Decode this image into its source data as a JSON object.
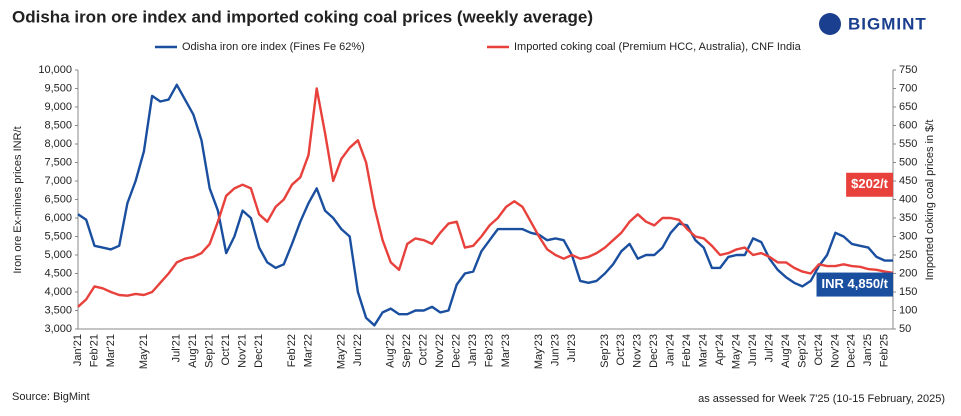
{
  "chart_data": {
    "type": "line",
    "title": "Odisha iron ore index and imported coking coal prices (weekly average)",
    "brand": "BIGMINT",
    "ylabel": "Iron ore Ex-mines prices INR/t",
    "y2label": "Imported  coking coal prices in $/t",
    "source": "Source: BigMint",
    "note": "as assessed for Week 7'25 (10-15 February, 2025)",
    "categories": [
      "Jan'21",
      null,
      "Feb'21",
      null,
      "Mar'21",
      null,
      null,
      null,
      "May'21",
      null,
      null,
      null,
      "Jul'21",
      null,
      "Aug'21",
      null,
      "Sep'21",
      null,
      "Oct'21",
      null,
      "Nov'21",
      null,
      "Dec'21",
      null,
      null,
      null,
      "Feb'22",
      null,
      "Mar'22",
      null,
      null,
      null,
      "May'22",
      null,
      "Jun'22",
      null,
      null,
      null,
      "Aug'22",
      null,
      "Sep'22",
      null,
      "Oct'22",
      null,
      "Nov'22",
      null,
      "Dec'22",
      null,
      "Jan'23",
      null,
      "Feb'23",
      null,
      "Mar'23",
      null,
      null,
      null,
      "May'23",
      null,
      "Jun'23",
      null,
      "Jul'23",
      null,
      null,
      null,
      "Sep'23",
      null,
      "Oct'23",
      null,
      "Nov'23",
      null,
      "Dec'23",
      null,
      "Jan'24",
      null,
      "Feb'24",
      null,
      "Mar'24",
      null,
      "Apr'24",
      null,
      "May'24",
      null,
      "Jun'24",
      null,
      "Jul'24",
      null,
      "Aug'24",
      null,
      "Sep'24",
      null,
      "Oct'24",
      null,
      "Nov'24",
      null,
      "Dec'24",
      null,
      "Jan'25",
      null,
      "Feb'25",
      null
    ],
    "series": [
      {
        "name": "Odisha iron ore index (Fines Fe 62%)",
        "color": "#1a4fa0",
        "axis": "y",
        "values": [
          6100,
          5950,
          5250,
          5200,
          5150,
          5250,
          6400,
          7000,
          7800,
          9300,
          9150,
          9200,
          9600,
          9200,
          8800,
          8100,
          6800,
          6200,
          5050,
          5500,
          6200,
          6000,
          5200,
          4800,
          4650,
          4750,
          5300,
          5900,
          6400,
          6800,
          6200,
          6000,
          5700,
          5500,
          4000,
          3300,
          3100,
          3450,
          3550,
          3400,
          3400,
          3500,
          3500,
          3600,
          3450,
          3500,
          4200,
          4500,
          4550,
          5100,
          5400,
          5700,
          5700,
          5700,
          5700,
          5600,
          5550,
          5400,
          5450,
          5400,
          5000,
          4300,
          4250,
          4300,
          4500,
          4750,
          5100,
          5300,
          4900,
          5000,
          5000,
          5200,
          5600,
          5850,
          5800,
          5400,
          5200,
          4650,
          4650,
          4950,
          5000,
          5000,
          5450,
          5350,
          4900,
          4600,
          4400,
          4250,
          4150,
          4300,
          4700,
          5000,
          5600,
          5500,
          5300,
          5250,
          5200,
          4950,
          4850,
          4850
        ]
      },
      {
        "name": "Imported coking coal (Premium HCC, Australia), CNF India",
        "color": "#e8413c",
        "axis": "y2",
        "values": [
          110,
          130,
          165,
          160,
          150,
          142,
          140,
          145,
          142,
          150,
          175,
          200,
          230,
          240,
          245,
          255,
          280,
          340,
          410,
          430,
          440,
          430,
          360,
          340,
          380,
          400,
          440,
          460,
          520,
          700,
          580,
          450,
          510,
          540,
          560,
          500,
          380,
          290,
          230,
          210,
          280,
          295,
          290,
          280,
          310,
          335,
          340,
          270,
          275,
          300,
          330,
          350,
          380,
          395,
          380,
          340,
          300,
          265,
          250,
          240,
          250,
          240,
          245,
          255,
          270,
          290,
          310,
          340,
          360,
          340,
          330,
          350,
          350,
          345,
          320,
          300,
          295,
          275,
          250,
          255,
          265,
          270,
          250,
          255,
          245,
          230,
          230,
          215,
          205,
          200,
          225,
          220,
          220,
          225,
          220,
          218,
          212,
          210,
          205,
          202
        ]
      }
    ],
    "ylim": [
      3000,
      10000
    ],
    "yticks": [
      {
        "value": 3000,
        "label": "3,000"
      },
      {
        "value": 3500,
        "label": "3,500"
      },
      {
        "value": 4000,
        "label": "4,000"
      },
      {
        "value": 4500,
        "label": "4,500"
      },
      {
        "value": 5000,
        "label": "5,000"
      },
      {
        "value": 5500,
        "label": "5,500"
      },
      {
        "value": 6000,
        "label": "6,000"
      },
      {
        "value": 6500,
        "label": "6,500"
      },
      {
        "value": 7000,
        "label": "7,000"
      },
      {
        "value": 7500,
        "label": "7,500"
      },
      {
        "value": 8000,
        "label": "8,000"
      },
      {
        "value": 8500,
        "label": "8,500"
      },
      {
        "value": 9000,
        "label": "9,000"
      },
      {
        "value": 9500,
        "label": "9,500"
      },
      {
        "value": 10000,
        "label": "10,000"
      }
    ],
    "y2lim": [
      50,
      750
    ],
    "y2ticks": [
      50,
      100,
      150,
      200,
      250,
      300,
      350,
      400,
      450,
      500,
      550,
      600,
      650,
      700,
      750
    ],
    "annotations": [
      {
        "text": "$202/t",
        "color": "#e8413c",
        "series": 1
      },
      {
        "text": "INR 4,850/t",
        "color": "#1a4fa0",
        "series": 0
      }
    ],
    "grid": false
  }
}
